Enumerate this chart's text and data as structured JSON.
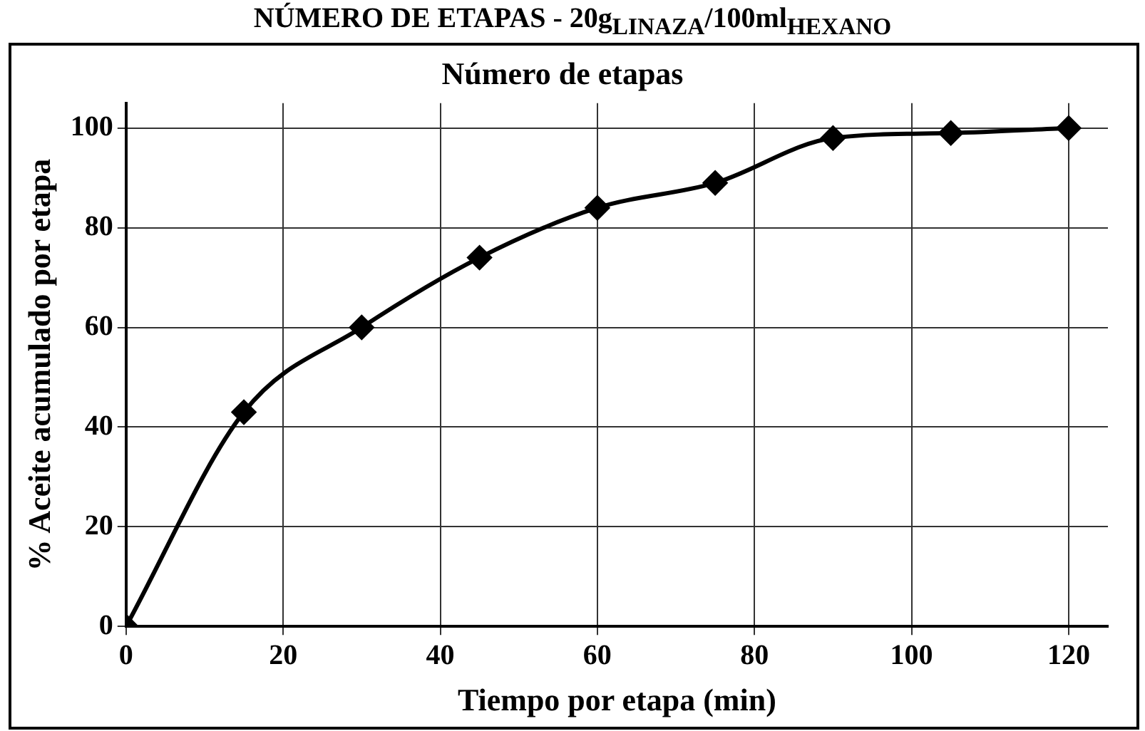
{
  "chart_data": {
    "type": "line",
    "title": "NÚMERO DE ETAPAS - 20g$_{LINAZA}$/100ml$_{HEXANO}$",
    "subtitle": "Número de etapas",
    "xlabel": "Tiempo por etapa (min)",
    "ylabel": "% Aceite acumulado por etapa",
    "x": [
      0,
      15,
      30,
      45,
      60,
      75,
      90,
      105,
      120
    ],
    "series": [
      {
        "color": "#000000",
        "values": [
          0,
          43,
          60,
          74,
          84,
          89,
          98,
          99,
          100
        ]
      }
    ],
    "xlim": [
      0,
      125
    ],
    "xticks": [
      0,
      20,
      40,
      60,
      80,
      100,
      120
    ],
    "ylim": [
      0,
      105
    ],
    "yticks": [
      0,
      20,
      40,
      60,
      80,
      100
    ],
    "grid": true,
    "legend": false,
    "marker": "diamond",
    "line_style": "solid"
  }
}
